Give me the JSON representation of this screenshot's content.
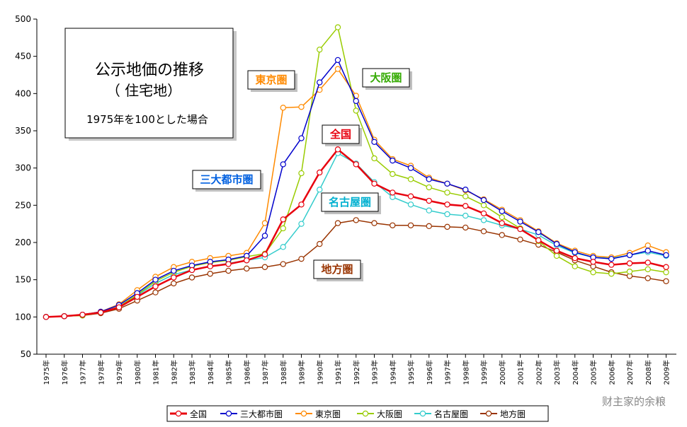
{
  "chart_data": {
    "type": "line",
    "title_lines": [
      "公示地価の推移",
      "（ 住宅地）"
    ],
    "subtitle": "1975年を100とした場合",
    "x": [
      "1975年",
      "1976年",
      "1977年",
      "1978年",
      "1979年",
      "1980年",
      "1981年",
      "1982年",
      "1983年",
      "1984年",
      "1985年",
      "1986年",
      "1987年",
      "1988年",
      "1989年",
      "1990年",
      "1991年",
      "1992年",
      "1993年",
      "1994年",
      "1995年",
      "1996年",
      "1997年",
      "1998年",
      "1999年",
      "2000年",
      "2001年",
      "2002年",
      "2003年",
      "2004年",
      "2005年",
      "2006年",
      "2007年",
      "2008年",
      "2009年"
    ],
    "ylim": [
      50,
      500
    ],
    "yticks": [
      50,
      100,
      150,
      200,
      250,
      300,
      350,
      400,
      450,
      500
    ],
    "grid": false,
    "series": [
      {
        "name": "全国",
        "color": "#e8000e",
        "width": 2.5,
        "marker": "#e8000e",
        "values": [
          100,
          101,
          103,
          106,
          113,
          127,
          141,
          153,
          163,
          168,
          171,
          176,
          184,
          231,
          251,
          294,
          325,
          305,
          279,
          267,
          262,
          256,
          251,
          249,
          239,
          226,
          218,
          203,
          189,
          179,
          174,
          170,
          172,
          173,
          167
        ]
      },
      {
        "name": "三大都市圏",
        "color": "#0000cc",
        "width": 1.5,
        "marker": "#0000cc",
        "values": [
          100,
          101,
          103,
          107,
          116,
          132,
          150,
          162,
          169,
          174,
          177,
          182,
          209,
          305,
          340,
          415,
          445,
          390,
          335,
          310,
          300,
          285,
          279,
          271,
          257,
          242,
          228,
          214,
          198,
          187,
          180,
          178,
          183,
          189,
          183
        ]
      },
      {
        "name": "東京圏",
        "color": "#ff8a00",
        "width": 1.5,
        "marker": "#ff8a00",
        "values": [
          100,
          101,
          103,
          107,
          117,
          136,
          154,
          167,
          174,
          179,
          182,
          186,
          226,
          381,
          382,
          405,
          433,
          397,
          338,
          312,
          303,
          287,
          279,
          270,
          258,
          244,
          230,
          215,
          199,
          189,
          182,
          180,
          186,
          196,
          187
        ]
      },
      {
        "name": "大阪圏",
        "color": "#99cc00",
        "width": 1.5,
        "marker": "#99cc00",
        "values": [
          100,
          101,
          102,
          106,
          114,
          130,
          148,
          160,
          168,
          173,
          176,
          181,
          185,
          219,
          293,
          459,
          489,
          377,
          313,
          292,
          285,
          274,
          267,
          262,
          250,
          234,
          219,
          202,
          182,
          168,
          160,
          158,
          161,
          164,
          160
        ]
      },
      {
        "name": "名古屋圏",
        "color": "#33cccc",
        "width": 1.5,
        "marker": "#33cccc",
        "values": [
          100,
          101,
          103,
          106,
          113,
          129,
          145,
          157,
          163,
          168,
          172,
          176,
          180,
          194,
          225,
          271,
          320,
          306,
          281,
          261,
          251,
          243,
          238,
          236,
          230,
          223,
          218,
          210,
          196,
          186,
          180,
          179,
          183,
          187,
          182
        ]
      },
      {
        "name": "地方圏",
        "color": "#993300",
        "width": 1.5,
        "marker": "#993300",
        "values": [
          100,
          101,
          102,
          105,
          111,
          122,
          133,
          145,
          153,
          158,
          162,
          165,
          167,
          171,
          178,
          198,
          226,
          230,
          226,
          223,
          223,
          222,
          221,
          220,
          215,
          210,
          204,
          197,
          187,
          176,
          168,
          160,
          155,
          152,
          148
        ]
      }
    ],
    "annotations": [
      {
        "text": "東京圏",
        "color": "#ff8a00"
      },
      {
        "text": "大阪圏",
        "color": "#33aa00"
      },
      {
        "text": "全国",
        "color": "#e8000e"
      },
      {
        "text": "三大都市圏",
        "color": "#0060e0"
      },
      {
        "text": "名古屋圏",
        "color": "#00b0d0"
      },
      {
        "text": "地方圏",
        "color": "#993300"
      }
    ]
  },
  "watermark": "财主家的余粮"
}
